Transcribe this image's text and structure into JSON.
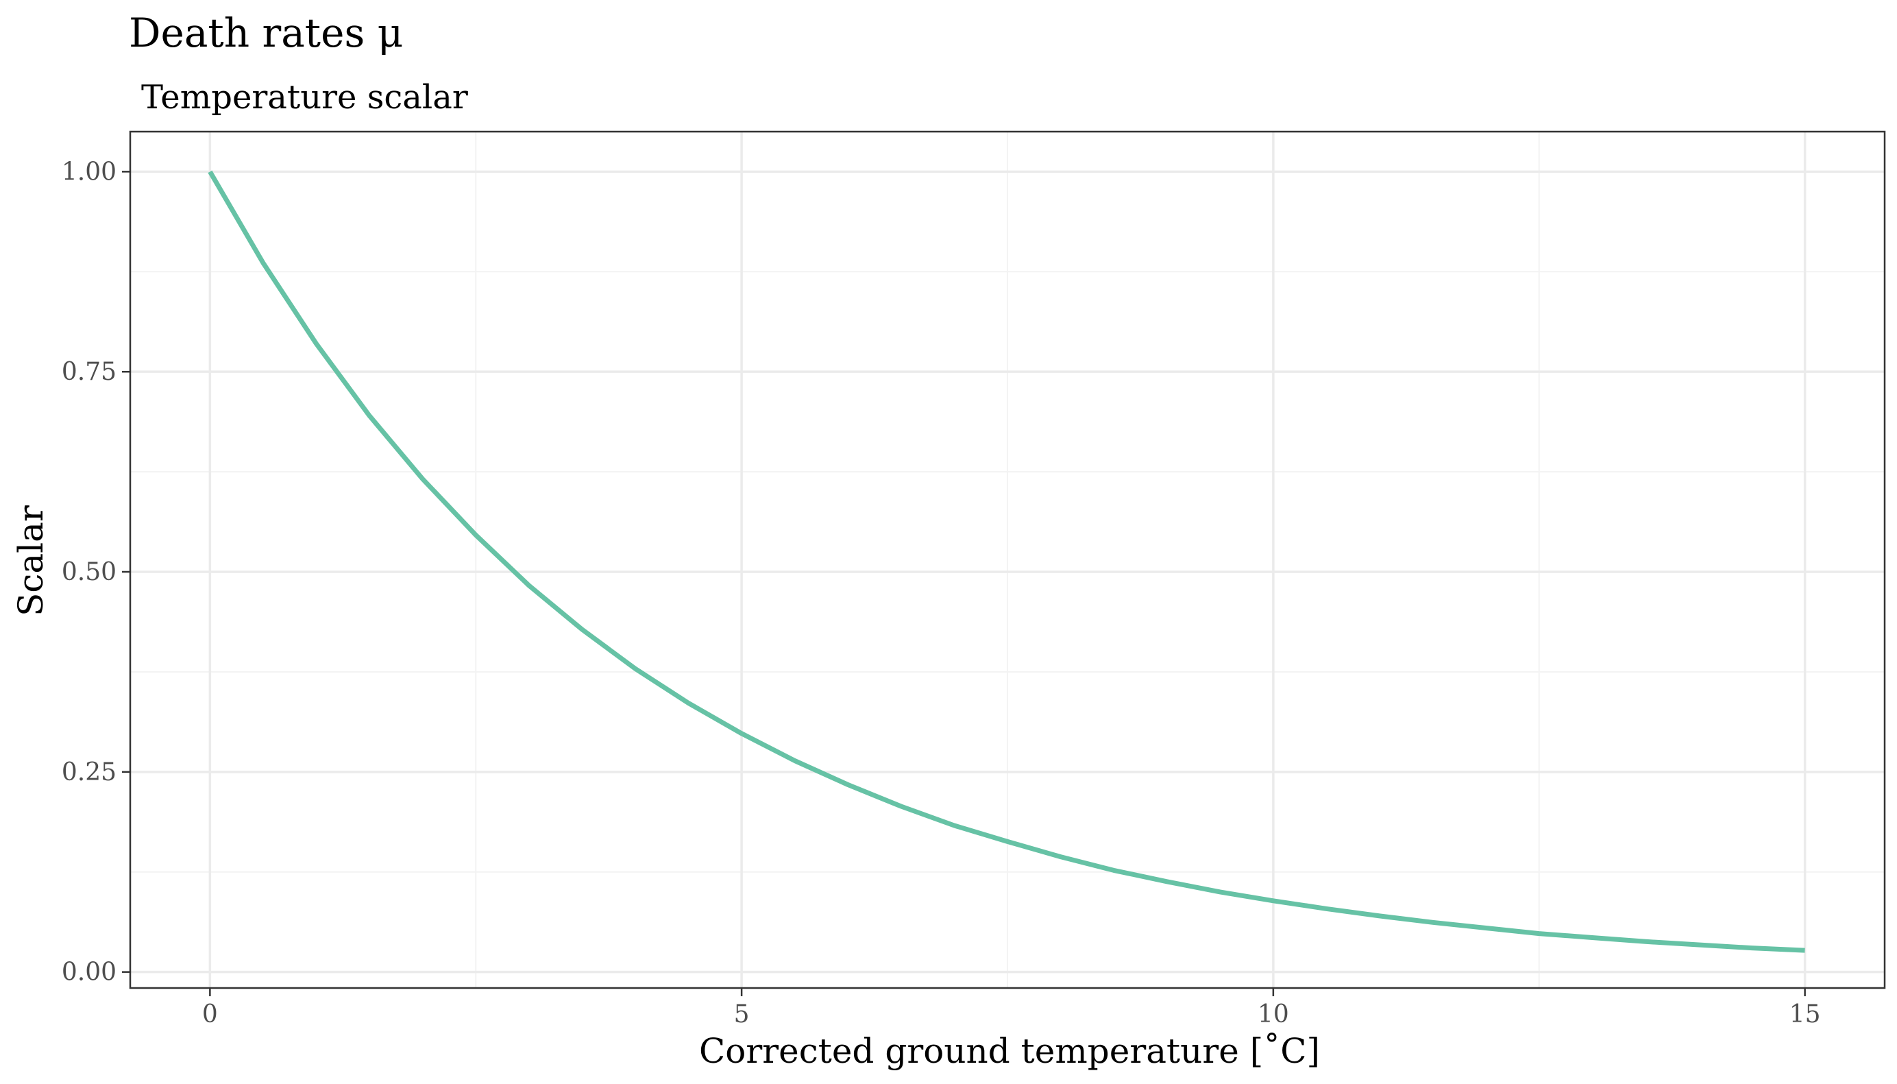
{
  "chart_data": {
    "type": "line",
    "title": "Death rates μ",
    "subtitle": "Temperature scalar",
    "xlabel": "Corrected ground temperature [˚C]",
    "ylabel": "Scalar",
    "xlim": [
      -0.75,
      15.75
    ],
    "ylim": [
      -0.02,
      1.05
    ],
    "x_ticks": [
      0,
      5,
      10,
      15
    ],
    "x_tick_labels": [
      "0",
      "5",
      "10",
      "15"
    ],
    "y_ticks": [
      0,
      0.25,
      0.5,
      0.75,
      1.0
    ],
    "y_tick_labels": [
      "0.00",
      "0.25",
      "0.50",
      "0.75",
      "1.00"
    ],
    "grid": true,
    "legend": "none",
    "colors": {
      "line": "#66c2a5",
      "grid_major": "#ebebeb",
      "grid_minor": "#f3f3f3",
      "panel_border": "#333333"
    },
    "series": [
      {
        "x": [
          0,
          0.5,
          1,
          1.5,
          2,
          2.5,
          3,
          3.5,
          4,
          4.5,
          5,
          5.5,
          6,
          6.5,
          7,
          7.5,
          8,
          8.5,
          9,
          9.5,
          10,
          10.5,
          11,
          11.5,
          12,
          12.5,
          13,
          13.5,
          14,
          14.5,
          15
        ],
        "y": [
          1.0,
          0.886,
          0.785,
          0.695,
          0.616,
          0.546,
          0.483,
          0.428,
          0.379,
          0.336,
          0.298,
          0.264,
          0.234,
          0.207,
          0.183,
          0.163,
          0.144,
          0.127,
          0.113,
          0.1,
          0.089,
          0.079,
          0.07,
          0.062,
          0.055,
          0.048,
          0.043,
          0.038,
          0.034,
          0.03,
          0.027
        ]
      }
    ]
  }
}
